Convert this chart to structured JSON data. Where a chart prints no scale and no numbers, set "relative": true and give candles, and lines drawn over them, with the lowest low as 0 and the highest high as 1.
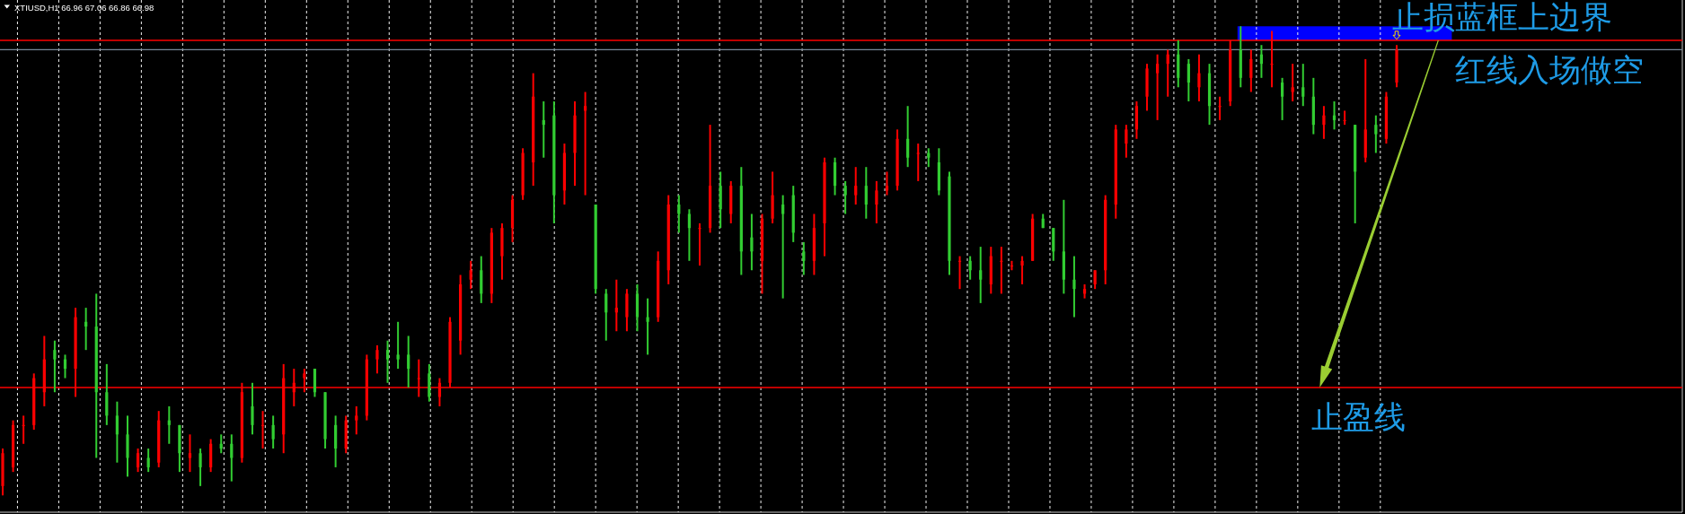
{
  "chart_data": {
    "type": "candlestick",
    "title": "XTIUSD,H1 66.96 67.06 66.86 66.98",
    "relative": true,
    "grid": "x",
    "categories": [
      null,
      null,
      null,
      null,
      null,
      null,
      null,
      null,
      null,
      null,
      null,
      null,
      null,
      null,
      null,
      null,
      null,
      null,
      null,
      null,
      null,
      null,
      null,
      null,
      null,
      null,
      null,
      null,
      null,
      null,
      null,
      null,
      null,
      null,
      null,
      null,
      null,
      null,
      null,
      null,
      null,
      null,
      null,
      null,
      null,
      null,
      null,
      null,
      null,
      null,
      null,
      null,
      null,
      null,
      null,
      null,
      null,
      null,
      null,
      null,
      null,
      null,
      null,
      null,
      null,
      null,
      null,
      null,
      null,
      null,
      null,
      null,
      null,
      null,
      null,
      null,
      null,
      null,
      null,
      null,
      null,
      null,
      null,
      null,
      null,
      null,
      null,
      null,
      null,
      null,
      null,
      null,
      null,
      null,
      null,
      null,
      null,
      null,
      null,
      null,
      null,
      null,
      null,
      null,
      null,
      null,
      null,
      null,
      null,
      null,
      null,
      null,
      null,
      null,
      null,
      null,
      null,
      null,
      null,
      null,
      null,
      null,
      null,
      null,
      null,
      null,
      null,
      null,
      null,
      null,
      null,
      null,
      null,
      null,
      null
    ],
    "ohlc": [
      [
        0.02,
        0.1,
        0.0,
        0.09
      ],
      [
        0.06,
        0.16,
        0.05,
        0.15
      ],
      [
        0.15,
        0.17,
        0.11,
        0.15
      ],
      [
        0.15,
        0.26,
        0.14,
        0.25
      ],
      [
        0.22,
        0.34,
        0.19,
        0.29
      ],
      [
        0.31,
        0.33,
        0.22,
        0.29
      ],
      [
        0.29,
        0.3,
        0.25,
        0.27
      ],
      [
        0.27,
        0.4,
        0.21,
        0.38
      ],
      [
        0.37,
        0.4,
        0.31,
        0.36
      ],
      [
        0.36,
        0.43,
        0.08,
        0.22
      ],
      [
        0.22,
        0.28,
        0.15,
        0.17
      ],
      [
        0.17,
        0.2,
        0.07,
        0.13
      ],
      [
        0.13,
        0.17,
        0.04,
        0.08
      ],
      [
        0.06,
        0.1,
        0.05,
        0.09
      ],
      [
        0.08,
        0.1,
        0.05,
        0.06
      ],
      [
        0.07,
        0.18,
        0.06,
        0.16
      ],
      [
        0.16,
        0.19,
        0.11,
        0.15
      ],
      [
        0.15,
        0.15,
        0.05,
        0.09
      ],
      [
        0.08,
        0.13,
        0.05,
        0.09
      ],
      [
        0.09,
        0.1,
        0.02,
        0.06
      ],
      [
        0.06,
        0.12,
        0.05,
        0.11
      ],
      [
        0.11,
        0.13,
        0.09,
        0.1
      ],
      [
        0.11,
        0.13,
        0.03,
        0.08
      ],
      [
        0.08,
        0.24,
        0.07,
        0.22
      ],
      [
        0.19,
        0.24,
        0.13,
        0.15
      ],
      [
        0.15,
        0.18,
        0.1,
        0.15
      ],
      [
        0.15,
        0.17,
        0.1,
        0.12
      ],
      [
        0.13,
        0.28,
        0.09,
        0.25
      ],
      [
        0.22,
        0.27,
        0.19,
        0.24
      ],
      [
        0.25,
        0.27,
        0.22,
        0.26
      ],
      [
        0.27,
        0.27,
        0.21,
        0.22
      ],
      [
        0.22,
        0.22,
        0.1,
        0.12
      ],
      [
        0.15,
        0.17,
        0.06,
        0.1
      ],
      [
        0.1,
        0.17,
        0.09,
        0.16
      ],
      [
        0.16,
        0.19,
        0.13,
        0.17
      ],
      [
        0.17,
        0.3,
        0.16,
        0.29
      ],
      [
        0.29,
        0.32,
        0.26,
        0.31
      ],
      [
        0.31,
        0.33,
        0.24,
        0.29
      ],
      [
        0.3,
        0.37,
        0.27,
        0.29
      ],
      [
        0.3,
        0.34,
        0.23,
        0.27
      ],
      [
        0.25,
        0.29,
        0.21,
        0.25
      ],
      [
        0.26,
        0.28,
        0.2,
        0.21
      ],
      [
        0.21,
        0.25,
        0.19,
        0.24
      ],
      [
        0.24,
        0.38,
        0.23,
        0.37
      ],
      [
        0.33,
        0.47,
        0.3,
        0.45
      ],
      [
        0.46,
        0.5,
        0.44,
        0.48
      ],
      [
        0.48,
        0.51,
        0.41,
        0.43
      ],
      [
        0.43,
        0.57,
        0.41,
        0.56
      ],
      [
        0.51,
        0.58,
        0.46,
        0.57
      ],
      [
        0.57,
        0.64,
        0.54,
        0.63
      ],
      [
        0.64,
        0.74,
        0.63,
        0.73
      ],
      [
        0.71,
        0.9,
        0.66,
        0.85
      ],
      [
        0.8,
        0.84,
        0.72,
        0.79
      ],
      [
        0.81,
        0.84,
        0.58,
        0.64
      ],
      [
        0.65,
        0.75,
        0.62,
        0.73
      ],
      [
        0.73,
        0.84,
        0.66,
        0.81
      ],
      [
        0.82,
        0.86,
        0.64,
        0.83
      ],
      [
        0.62,
        0.62,
        0.43,
        0.44
      ],
      [
        0.43,
        0.44,
        0.33,
        0.39
      ],
      [
        0.39,
        0.46,
        0.35,
        0.4
      ],
      [
        0.38,
        0.44,
        0.35,
        0.43
      ],
      [
        0.43,
        0.45,
        0.35,
        0.38
      ],
      [
        0.38,
        0.42,
        0.3,
        0.37
      ],
      [
        0.38,
        0.52,
        0.37,
        0.5
      ],
      [
        0.48,
        0.64,
        0.45,
        0.62
      ],
      [
        0.62,
        0.64,
        0.56,
        0.6
      ],
      [
        0.6,
        0.61,
        0.5,
        0.57
      ],
      [
        0.57,
        0.58,
        0.49,
        0.57
      ],
      [
        0.57,
        0.79,
        0.56,
        0.66
      ],
      [
        0.66,
        0.69,
        0.57,
        0.61
      ],
      [
        0.6,
        0.67,
        0.58,
        0.66
      ],
      [
        0.66,
        0.7,
        0.47,
        0.52
      ],
      [
        0.55,
        0.6,
        0.48,
        0.52
      ],
      [
        0.5,
        0.6,
        0.43,
        0.59
      ],
      [
        0.59,
        0.69,
        0.58,
        0.64
      ],
      [
        0.62,
        0.64,
        0.42,
        0.6
      ],
      [
        0.64,
        0.66,
        0.54,
        0.56
      ],
      [
        0.52,
        0.54,
        0.47,
        0.5
      ],
      [
        0.5,
        0.6,
        0.47,
        0.57
      ],
      [
        0.58,
        0.72,
        0.51,
        0.71
      ],
      [
        0.71,
        0.72,
        0.64,
        0.66
      ],
      [
        0.66,
        0.67,
        0.6,
        0.64
      ],
      [
        0.64,
        0.7,
        0.62,
        0.66
      ],
      [
        0.66,
        0.7,
        0.59,
        0.62
      ],
      [
        0.62,
        0.67,
        0.58,
        0.65
      ],
      [
        0.65,
        0.69,
        0.64,
        0.66
      ],
      [
        0.66,
        0.78,
        0.65,
        0.76
      ],
      [
        0.76,
        0.83,
        0.7,
        0.72
      ],
      [
        0.73,
        0.75,
        0.67,
        0.73
      ],
      [
        0.73,
        0.74,
        0.7,
        0.72
      ],
      [
        0.71,
        0.74,
        0.64,
        0.65
      ],
      [
        0.68,
        0.69,
        0.47,
        0.5
      ],
      [
        0.5,
        0.51,
        0.44,
        0.5
      ],
      [
        0.5,
        0.51,
        0.46,
        0.48
      ],
      [
        0.48,
        0.53,
        0.41,
        0.46
      ],
      [
        0.45,
        0.53,
        0.43,
        0.51
      ],
      [
        0.5,
        0.53,
        0.43,
        0.5
      ],
      [
        0.49,
        0.5,
        0.48,
        0.49
      ],
      [
        0.49,
        0.51,
        0.45,
        0.5
      ],
      [
        0.5,
        0.6,
        0.5,
        0.59
      ],
      [
        0.59,
        0.6,
        0.57,
        0.57
      ],
      [
        0.57,
        0.57,
        0.5,
        0.52
      ],
      [
        0.52,
        0.63,
        0.43,
        0.46
      ],
      [
        0.46,
        0.51,
        0.38,
        0.44
      ],
      [
        0.43,
        0.45,
        0.42,
        0.44
      ],
      [
        0.45,
        0.48,
        0.44,
        0.48
      ],
      [
        0.48,
        0.64,
        0.45,
        0.63
      ],
      [
        0.62,
        0.79,
        0.59,
        0.78
      ],
      [
        0.75,
        0.79,
        0.72,
        0.78
      ],
      [
        0.78,
        0.84,
        0.76,
        0.83
      ],
      [
        0.85,
        0.92,
        0.82,
        0.91
      ],
      [
        0.9,
        0.94,
        0.8,
        0.92
      ],
      [
        0.92,
        0.95,
        0.85,
        0.94
      ],
      [
        0.94,
        0.97,
        0.87,
        0.89
      ],
      [
        0.92,
        0.93,
        0.84,
        0.88
      ],
      [
        0.87,
        0.94,
        0.84,
        0.9
      ],
      [
        0.9,
        0.92,
        0.79,
        0.83
      ],
      [
        0.83,
        0.85,
        0.8,
        0.83
      ],
      [
        0.84,
        0.97,
        0.83,
        0.95
      ],
      [
        0.95,
        1.0,
        0.87,
        0.89
      ],
      [
        0.89,
        0.95,
        0.86,
        0.93
      ],
      [
        0.94,
        0.96,
        0.89,
        0.92
      ],
      [
        0.92,
        0.99,
        0.87,
        0.92
      ],
      [
        0.88,
        0.89,
        0.8,
        0.85
      ],
      [
        0.86,
        0.92,
        0.84,
        0.87
      ],
      [
        0.87,
        0.92,
        0.83,
        0.85
      ],
      [
        0.85,
        0.89,
        0.77,
        0.79
      ],
      [
        0.79,
        0.83,
        0.76,
        0.81
      ],
      [
        0.81,
        0.84,
        0.78,
        0.8
      ],
      [
        0.8,
        0.82,
        0.79,
        0.8
      ],
      [
        0.79,
        0.79,
        0.58,
        0.69
      ],
      [
        0.72,
        0.93,
        0.71,
        0.78
      ],
      [
        0.79,
        0.81,
        0.73,
        0.77
      ],
      [
        0.76,
        0.86,
        0.75,
        0.85
      ],
      [
        0.88,
        0.96,
        0.87,
        0.95
      ]
    ],
    "colors": [
      "#ff0000",
      "#ff0000",
      "#ff0000",
      "#ff0000",
      "#ff0000",
      "#32cd32",
      "#32cd32",
      "#ff0000",
      "#32cd32",
      "#32cd32",
      "#32cd32",
      "#32cd32",
      "#32cd32",
      "#ff0000",
      "#32cd32",
      "#ff0000",
      "#32cd32",
      "#32cd32",
      "#ff0000",
      "#32cd32",
      "#ff0000",
      "#32cd32",
      "#32cd32",
      "#ff0000",
      "#32cd32",
      "#ff0000",
      "#32cd32",
      "#ff0000",
      "#ff0000",
      "#ff0000",
      "#32cd32",
      "#32cd32",
      "#32cd32",
      "#ff0000",
      "#ff0000",
      "#ff0000",
      "#ff0000",
      "#32cd32",
      "#32cd32",
      "#32cd32",
      "#ff0000",
      "#32cd32",
      "#ff0000",
      "#ff0000",
      "#ff0000",
      "#ff0000",
      "#32cd32",
      "#ff0000",
      "#ff0000",
      "#ff0000",
      "#ff0000",
      "#ff0000",
      "#32cd32",
      "#32cd32",
      "#ff0000",
      "#ff0000",
      "#ff0000",
      "#32cd32",
      "#32cd32",
      "#ff0000",
      "#ff0000",
      "#32cd32",
      "#32cd32",
      "#ff0000",
      "#ff0000",
      "#32cd32",
      "#32cd32",
      "#ff0000",
      "#ff0000",
      "#32cd32",
      "#ff0000",
      "#32cd32",
      "#32cd32",
      "#ff0000",
      "#ff0000",
      "#32cd32",
      "#32cd32",
      "#32cd32",
      "#ff0000",
      "#ff0000",
      "#32cd32",
      "#32cd32",
      "#ff0000",
      "#32cd32",
      "#ff0000",
      "#ff0000",
      "#ff0000",
      "#32cd32",
      "#ff0000",
      "#32cd32",
      "#32cd32",
      "#32cd32",
      "#ff0000",
      "#32cd32",
      "#32cd32",
      "#ff0000",
      "#ff0000",
      "#ff0000",
      "#ff0000",
      "#ff0000",
      "#32cd32",
      "#32cd32",
      "#32cd32",
      "#32cd32",
      "#ff0000",
      "#ff0000",
      "#ff0000",
      "#ff0000",
      "#ff0000",
      "#ff0000",
      "#ff0000",
      "#ff0000",
      "#ff0000",
      "#32cd32",
      "#32cd32",
      "#ff0000",
      "#32cd32",
      "#ff0000",
      "#ff0000",
      "#32cd32",
      "#ff0000",
      "#32cd32",
      "#ff0000",
      "#32cd32",
      "#ff0000",
      "#32cd32",
      "#32cd32",
      "#ff0000",
      "#32cd32",
      "#ff0000",
      "#32cd32",
      "#ff0000",
      "#32cd32",
      "#ff0000",
      "#ff0000"
    ],
    "ref_lines": [
      {
        "axis": "y",
        "value": 0.97,
        "label": "红线入场做空",
        "color": "#ff0000"
      },
      {
        "axis": "y",
        "value": 0.95,
        "color": "#778899"
      },
      {
        "axis": "y",
        "value": 0.23,
        "label": "止盈线",
        "color": "#ff0000"
      }
    ],
    "bands": [
      {
        "axis": "y",
        "from": 0.97,
        "to": 1.0,
        "label": "止损蓝框上边界",
        "color": "#0000ff"
      }
    ]
  }
}
